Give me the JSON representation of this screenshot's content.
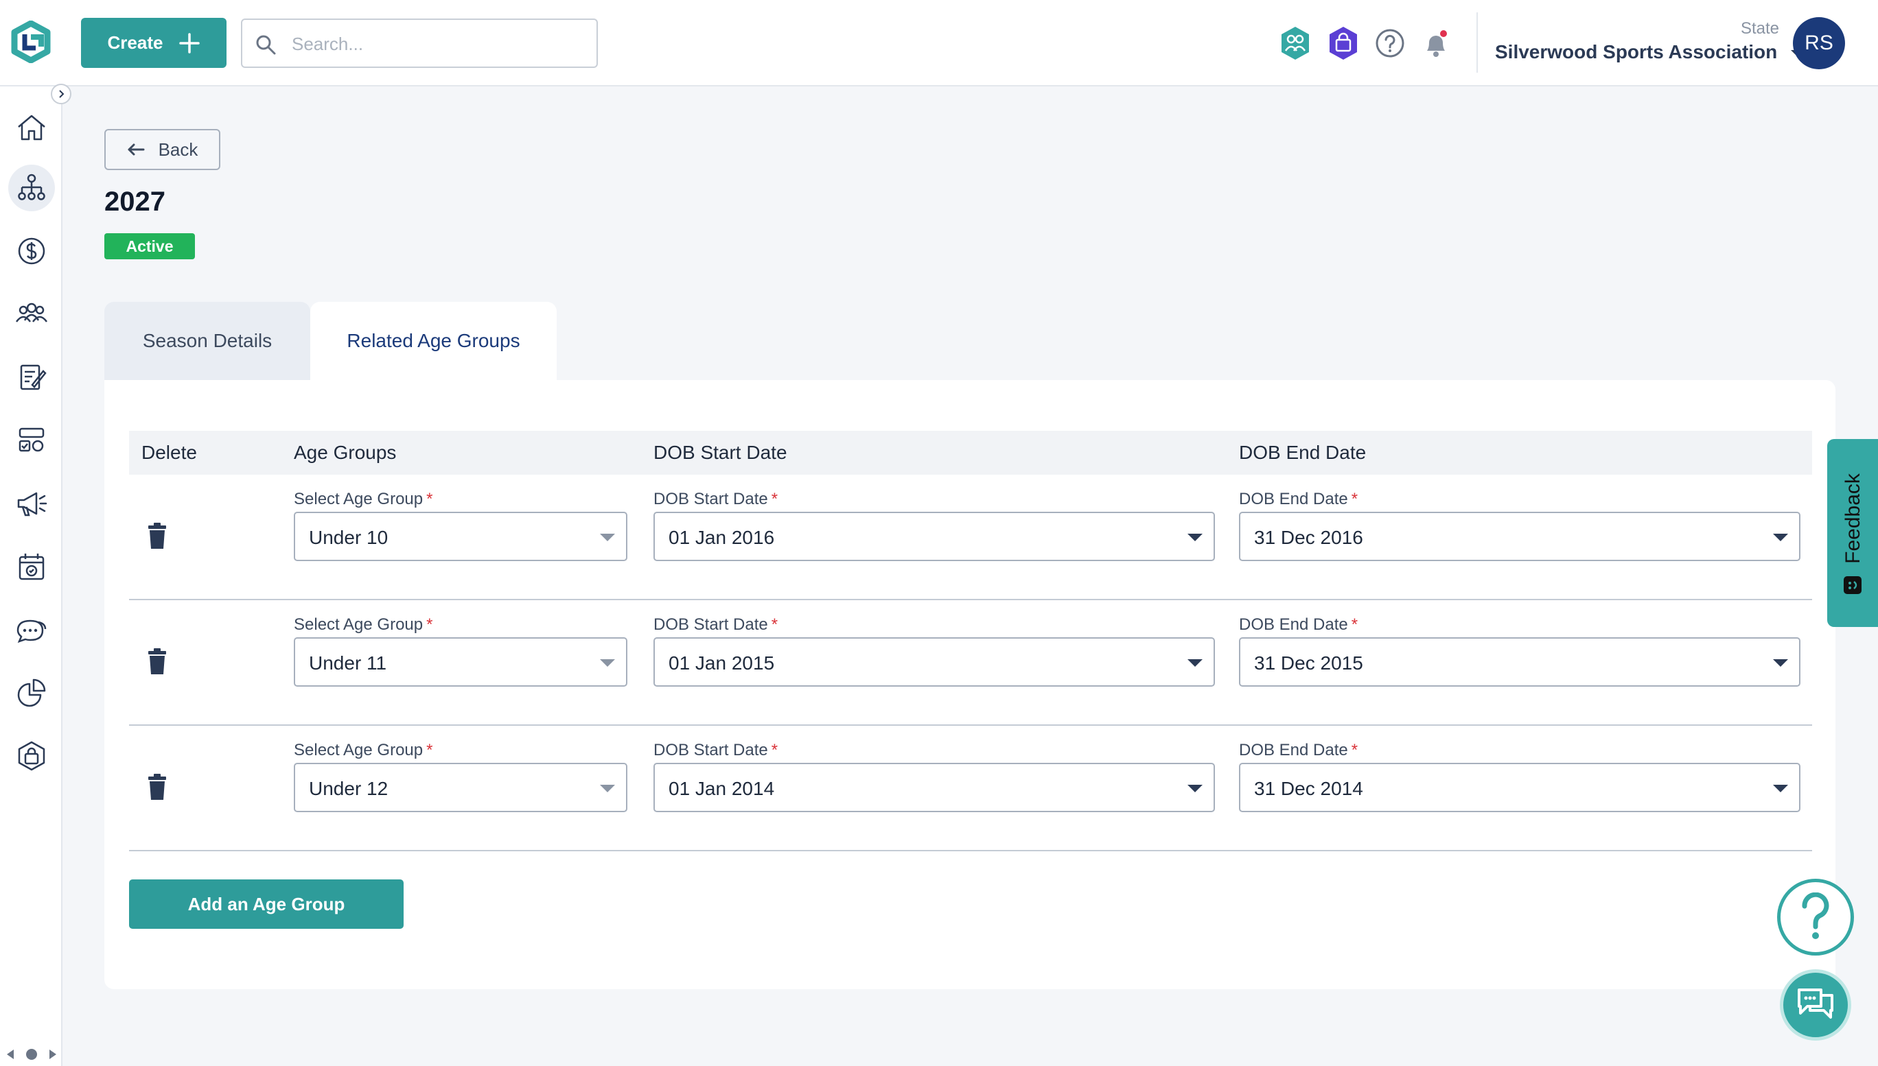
{
  "header": {
    "create_label": "Create",
    "search_placeholder": "Search...",
    "org_role": "State",
    "org_name": "Silverwood Sports Association",
    "avatar_initials": "RS",
    "icons": [
      "people-hexagon-icon",
      "shop-hexagon-icon",
      "help-circle-icon",
      "bell-icon"
    ]
  },
  "sidebar": {
    "items": [
      {
        "name": "home-icon"
      },
      {
        "name": "organisation-icon",
        "active": true
      },
      {
        "name": "dollar-icon"
      },
      {
        "name": "users-icon"
      },
      {
        "name": "registration-form-icon"
      },
      {
        "name": "competition-icon"
      },
      {
        "name": "megaphone-icon"
      },
      {
        "name": "calendar-icon"
      },
      {
        "name": "chat-icon"
      },
      {
        "name": "pie-chart-icon"
      },
      {
        "name": "shop-icon"
      }
    ]
  },
  "page": {
    "back_label": "Back",
    "title": "2027",
    "status": "Active"
  },
  "tabs": [
    {
      "label": "Season Details",
      "active": false
    },
    {
      "label": "Related Age Groups",
      "active": true
    }
  ],
  "table": {
    "headers": {
      "delete": "Delete",
      "age_groups": "Age Groups",
      "dob_start": "DOB Start Date",
      "dob_end": "DOB End Date"
    },
    "field_labels": {
      "age_group": "Select Age Group",
      "dob_start": "DOB Start Date",
      "dob_end": "DOB End Date",
      "required_mark": "*"
    },
    "rows": [
      {
        "age_group": "Under 10",
        "dob_start": "01 Jan 2016",
        "dob_end": "31 Dec 2016"
      },
      {
        "age_group": "Under 11",
        "dob_start": "01 Jan 2015",
        "dob_end": "31 Dec 2015"
      },
      {
        "age_group": "Under 12",
        "dob_start": "01 Jan 2014",
        "dob_end": "31 Dec 2014"
      }
    ],
    "add_label": "Add an Age Group"
  },
  "widgets": {
    "feedback_label": "Feedback"
  },
  "colors": {
    "primary": "#2e9c9a",
    "navy": "#1b3a7a",
    "active_badge": "#22b35a",
    "required": "#d9343a"
  }
}
